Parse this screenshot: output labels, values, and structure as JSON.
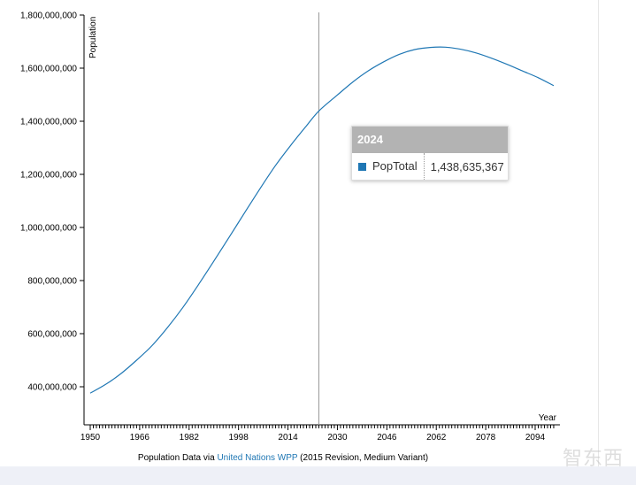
{
  "chart_data": {
    "type": "line",
    "xlabel": "Year",
    "ylabel": "Population",
    "xlim": [
      1950,
      2100
    ],
    "ylim": [
      320000000,
      1800000000
    ],
    "x_ticks": [
      1950,
      1966,
      1982,
      1998,
      2014,
      2030,
      2046,
      2062,
      2078,
      2094
    ],
    "y_ticks": [
      400000000,
      600000000,
      800000000,
      1000000000,
      1200000000,
      1400000000,
      1600000000,
      1800000000
    ],
    "y_tick_labels": [
      "400,000,000",
      "600,000,000",
      "800,000,000",
      "1,000,000,000",
      "1,200,000,000",
      "1,400,000,000",
      "1,600,000,000",
      "1,800,000,000"
    ],
    "series": [
      {
        "name": "PopTotal",
        "color": "#1f77b4",
        "x": [
          1950,
          1955,
          1960,
          1965,
          1970,
          1975,
          1980,
          1985,
          1990,
          1995,
          2000,
          2005,
          2010,
          2015,
          2020,
          2024,
          2030,
          2035,
          2040,
          2045,
          2050,
          2055,
          2060,
          2065,
          2070,
          2075,
          2080,
          2085,
          2090,
          2095,
          2100
        ],
        "y": [
          376000000,
          409000000,
          450000000,
          500000000,
          555000000,
          623000000,
          699000000,
          784000000,
          873000000,
          964000000,
          1056000000,
          1147000000,
          1234000000,
          1311000000,
          1383000000,
          1438635367,
          1499000000,
          1548000000,
          1590000000,
          1624000000,
          1652000000,
          1670000000,
          1678000000,
          1679000000,
          1671000000,
          1657000000,
          1637000000,
          1614000000,
          1589000000,
          1564000000,
          1534000000
        ]
      }
    ],
    "grid": false,
    "cursor_year": 2024
  },
  "tooltip": {
    "title": "2024",
    "series_name": "PopTotal",
    "value": "1,438,635,367",
    "swatch_color": "#1f77b4"
  },
  "footer": {
    "prefix": "Population Data via ",
    "link": "United Nations WPP",
    "suffix": " (2015 Revision, Medium Variant)"
  },
  "watermark": "智东西"
}
